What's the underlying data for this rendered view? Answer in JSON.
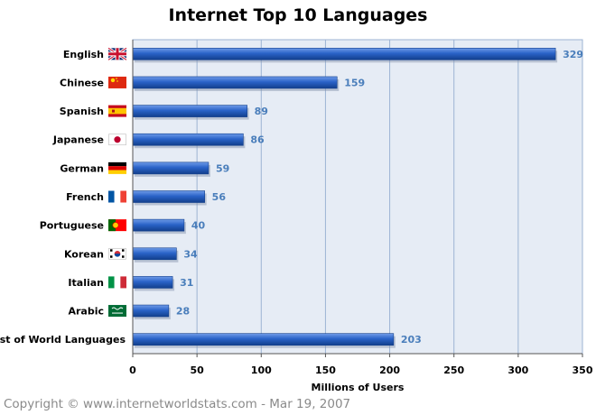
{
  "chart_data": {
    "type": "bar",
    "orientation": "horizontal",
    "title": "Internet Top 10 Languages",
    "categories": [
      "English",
      "Chinese",
      "Spanish",
      "Japanese",
      "German",
      "French",
      "Portuguese",
      "Korean",
      "Italian",
      "Arabic",
      "Rest of World Languages"
    ],
    "values": [
      329,
      159,
      89,
      86,
      59,
      56,
      40,
      34,
      31,
      28,
      203
    ],
    "value_labels": [
      "329",
      "159",
      "89",
      "86",
      "59",
      "56",
      "40",
      "34",
      "31",
      "28",
      "203"
    ],
    "flags": [
      "uk-flag-icon",
      "china-flag-icon",
      "spain-flag-icon",
      "japan-flag-icon",
      "germany-flag-icon",
      "france-flag-icon",
      "portugal-flag-icon",
      "korea-flag-icon",
      "italy-flag-icon",
      "saudi-arabia-flag-icon",
      null
    ],
    "xlabel": "Millions of Users",
    "ylabel": "",
    "xlim": [
      0,
      350
    ],
    "xticks": [
      0,
      50,
      100,
      150,
      200,
      250,
      300,
      350
    ],
    "xtick_labels": [
      "0",
      "50",
      "100",
      "150",
      "200",
      "250",
      "300",
      "350"
    ],
    "grid": true,
    "colors": {
      "bar": "#2a63c8",
      "bar_light": "#6f9be8",
      "bar_dark": "#123f8c",
      "plot_background": "#e6ecf5",
      "gridline": "#9db3d3",
      "value_label": "#4a7ebb"
    }
  },
  "footer": {
    "copyright": "Copyright © www.internetworldstats.com - Mar 19, 2007"
  }
}
